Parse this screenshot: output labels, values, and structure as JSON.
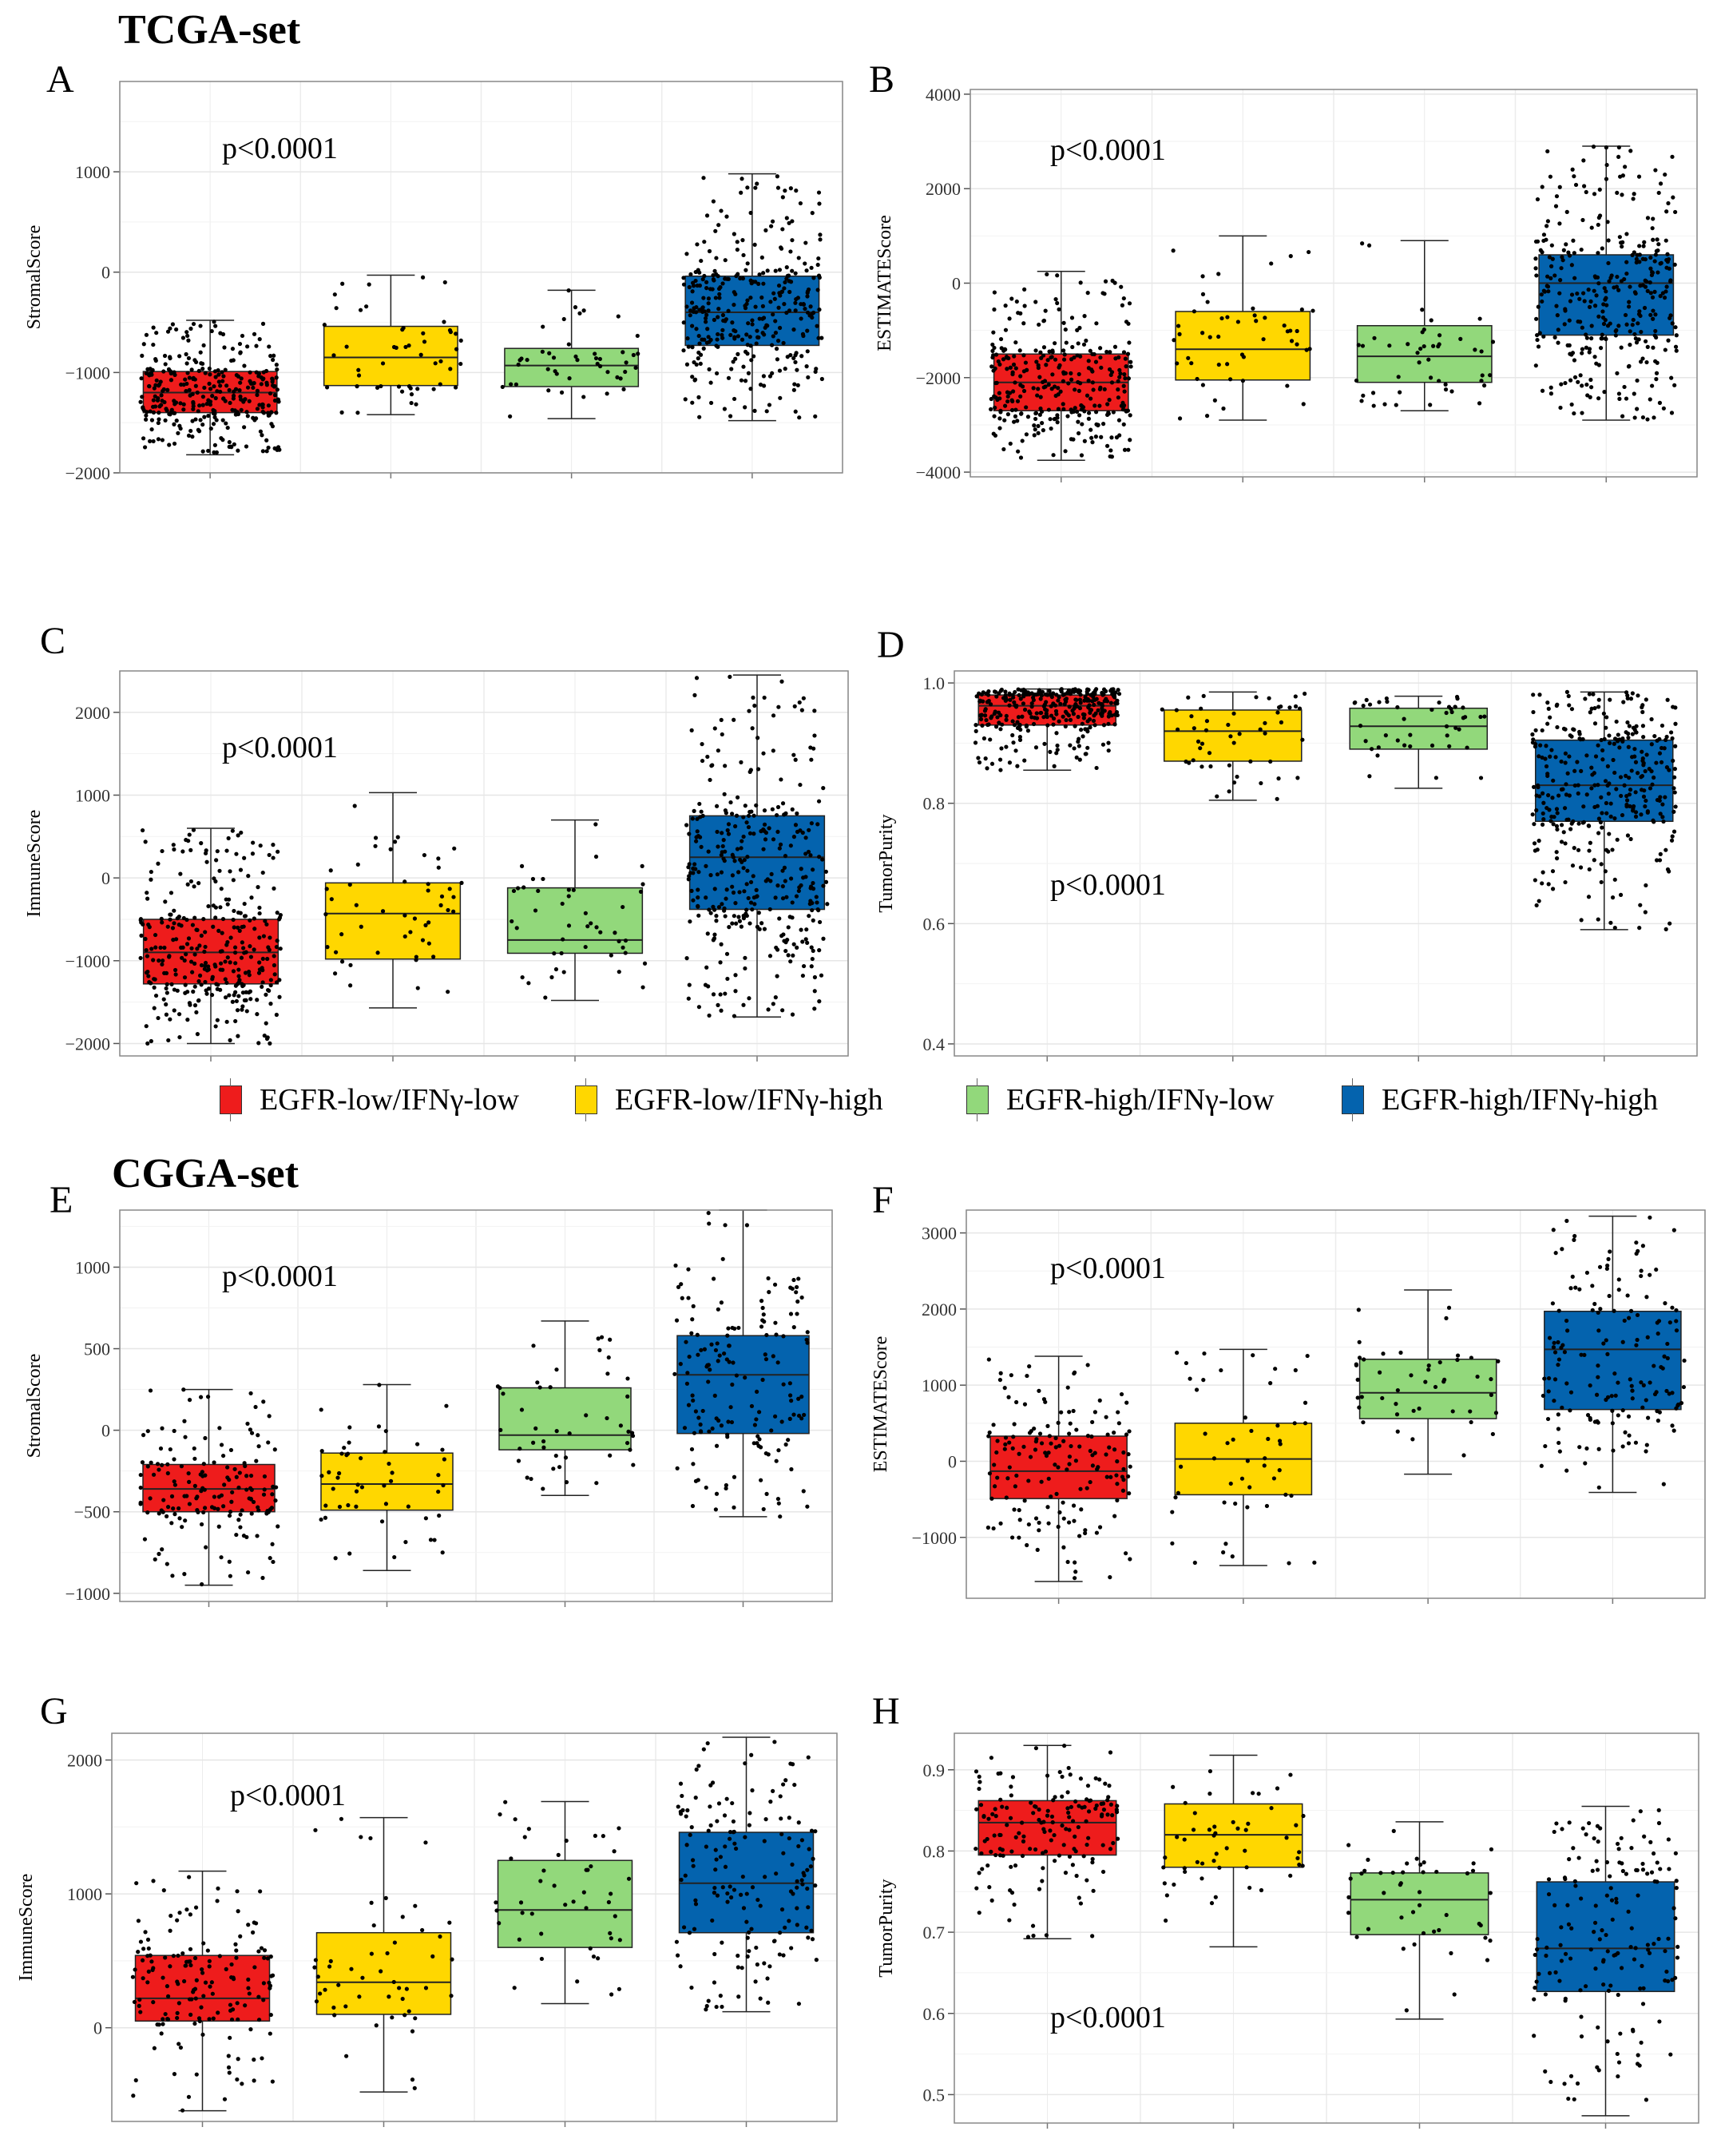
{
  "titles": {
    "tcga": "TCGA-set",
    "cgga": "CGGA-set"
  },
  "groups": [
    "EGFR-low/IFNγ-low",
    "EGFR-low/IFNγ-high",
    "EGFR-high/IFNγ-low",
    "EGFR-high/IFNγ-high"
  ],
  "colors": {
    "g1": "#ee1c1c",
    "g2": "#ffd700",
    "g3": "#92d87b",
    "g4": "#0463ae"
  },
  "chart_data": [
    {
      "id": "A",
      "type": "box",
      "ylabel": "StromalScore",
      "pvalue": "p<0.0001",
      "ylim": [
        -2000,
        1900
      ],
      "ticks": [
        -2000,
        -1000,
        0,
        1000
      ],
      "boxes": [
        {
          "group": "EGFR-low/IFNγ-low",
          "q1": -1400,
          "median": -1200,
          "q3": -990,
          "lo": -1820,
          "hi": -480,
          "n": 320
        },
        {
          "group": "EGFR-low/IFNγ-high",
          "q1": -1130,
          "median": -850,
          "q3": -540,
          "lo": -1420,
          "hi": -30,
          "n": 50
        },
        {
          "group": "EGFR-high/IFNγ-low",
          "q1": -1140,
          "median": -930,
          "q3": -760,
          "lo": -1460,
          "hi": -180,
          "n": 45
        },
        {
          "group": "EGFR-high/IFNγ-high",
          "q1": -730,
          "median": -400,
          "q3": -40,
          "lo": -1480,
          "hi": 980,
          "n": 330
        }
      ]
    },
    {
      "id": "B",
      "type": "box",
      "ylabel": "ESTIMATEScore",
      "pvalue": "p<0.0001",
      "ylim": [
        -4100,
        4100
      ],
      "ticks": [
        -4000,
        -2000,
        0,
        2000,
        4000
      ],
      "boxes": [
        {
          "group": "EGFR-low/IFNγ-low",
          "q1": -2700,
          "median": -2100,
          "q3": -1500,
          "lo": -3750,
          "hi": 250,
          "n": 320
        },
        {
          "group": "EGFR-low/IFNγ-high",
          "q1": -2050,
          "median": -1400,
          "q3": -600,
          "lo": -2900,
          "hi": 1000,
          "n": 50
        },
        {
          "group": "EGFR-high/IFNγ-low",
          "q1": -2100,
          "median": -1550,
          "q3": -900,
          "lo": -2700,
          "hi": 900,
          "n": 45
        },
        {
          "group": "EGFR-high/IFNγ-high",
          "q1": -1100,
          "median": 0,
          "q3": 600,
          "lo": -2900,
          "hi": 2900,
          "n": 330
        }
      ]
    },
    {
      "id": "C",
      "type": "box",
      "ylabel": "ImmuneScore",
      "pvalue": "p<0.0001",
      "ylim": [
        -2150,
        2500
      ],
      "ticks": [
        -2000,
        -1000,
        0,
        1000,
        2000
      ],
      "boxes": [
        {
          "group": "EGFR-low/IFNγ-low",
          "q1": -1280,
          "median": -900,
          "q3": -500,
          "lo": -2000,
          "hi": 600,
          "n": 320
        },
        {
          "group": "EGFR-low/IFNγ-high",
          "q1": -980,
          "median": -430,
          "q3": -60,
          "lo": -1570,
          "hi": 1030,
          "n": 50
        },
        {
          "group": "EGFR-high/IFNγ-low",
          "q1": -910,
          "median": -750,
          "q3": -120,
          "lo": -1480,
          "hi": 700,
          "n": 45
        },
        {
          "group": "EGFR-high/IFNγ-high",
          "q1": -380,
          "median": 250,
          "q3": 750,
          "lo": -1680,
          "hi": 2450,
          "n": 330
        }
      ]
    },
    {
      "id": "D",
      "type": "box",
      "ylabel": "TumorPurity",
      "pvalue": "p<0.0001",
      "ylim": [
        0.38,
        1.02
      ],
      "ticks": [
        0.4,
        0.6,
        0.8,
        1.0
      ],
      "boxes": [
        {
          "group": "EGFR-low/IFNγ-low",
          "q1": 0.93,
          "median": 0.962,
          "q3": 0.98,
          "lo": 0.855,
          "hi": 0.99,
          "n": 320
        },
        {
          "group": "EGFR-low/IFNγ-high",
          "q1": 0.87,
          "median": 0.92,
          "q3": 0.955,
          "lo": 0.805,
          "hi": 0.985,
          "n": 50
        },
        {
          "group": "EGFR-high/IFNγ-low",
          "q1": 0.89,
          "median": 0.928,
          "q3": 0.958,
          "lo": 0.825,
          "hi": 0.978,
          "n": 45
        },
        {
          "group": "EGFR-high/IFNγ-high",
          "q1": 0.77,
          "median": 0.83,
          "q3": 0.905,
          "lo": 0.59,
          "hi": 0.985,
          "n": 330
        }
      ]
    },
    {
      "id": "E",
      "type": "box",
      "ylabel": "StromalScore",
      "pvalue": "p<0.0001",
      "ylim": [
        -1050,
        1350
      ],
      "ticks": [
        -1000,
        -500,
        0,
        500,
        1000
      ],
      "boxes": [
        {
          "group": "EGFR-low/IFNγ-low",
          "q1": -500,
          "median": -360,
          "q3": -210,
          "lo": -950,
          "hi": 250,
          "n": 160
        },
        {
          "group": "EGFR-low/IFNγ-high",
          "q1": -490,
          "median": -330,
          "q3": -140,
          "lo": -860,
          "hi": 280,
          "n": 50
        },
        {
          "group": "EGFR-high/IFNγ-low",
          "q1": -120,
          "median": -30,
          "q3": 260,
          "lo": -400,
          "hi": 670,
          "n": 45
        },
        {
          "group": "EGFR-high/IFNγ-high",
          "q1": -20,
          "median": 340,
          "q3": 580,
          "lo": -530,
          "hi": 1350,
          "n": 160
        }
      ]
    },
    {
      "id": "F",
      "type": "box",
      "ylabel": "ESTIMATEScore",
      "pvalue": "p<0.0001",
      "ylim": [
        -1800,
        3300
      ],
      "ticks": [
        -1000,
        0,
        1000,
        2000,
        3000
      ],
      "boxes": [
        {
          "group": "EGFR-low/IFNγ-low",
          "q1": -490,
          "median": -130,
          "q3": 330,
          "lo": -1580,
          "hi": 1380,
          "n": 160
        },
        {
          "group": "EGFR-low/IFNγ-high",
          "q1": -440,
          "median": 30,
          "q3": 500,
          "lo": -1370,
          "hi": 1470,
          "n": 50
        },
        {
          "group": "EGFR-high/IFNγ-low",
          "q1": 560,
          "median": 900,
          "q3": 1340,
          "lo": -170,
          "hi": 2250,
          "n": 45
        },
        {
          "group": "EGFR-high/IFNγ-high",
          "q1": 680,
          "median": 1470,
          "q3": 1970,
          "lo": -410,
          "hi": 3220,
          "n": 160
        }
      ]
    },
    {
      "id": "G",
      "type": "box",
      "ylabel": "ImmuneScore",
      "pvalue": "p<0.0001",
      "ylim": [
        -700,
        2200
      ],
      "ticks": [
        0,
        1000,
        2000
      ],
      "boxes": [
        {
          "group": "EGFR-low/IFNγ-low",
          "q1": 50,
          "median": 220,
          "q3": 540,
          "lo": -620,
          "hi": 1170,
          "n": 160
        },
        {
          "group": "EGFR-low/IFNγ-high",
          "q1": 100,
          "median": 340,
          "q3": 710,
          "lo": -480,
          "hi": 1570,
          "n": 50
        },
        {
          "group": "EGFR-high/IFNγ-low",
          "q1": 600,
          "median": 880,
          "q3": 1250,
          "lo": 180,
          "hi": 1690,
          "n": 45
        },
        {
          "group": "EGFR-high/IFNγ-high",
          "q1": 710,
          "median": 1080,
          "q3": 1460,
          "lo": 120,
          "hi": 2170,
          "n": 160
        }
      ]
    },
    {
      "id": "H",
      "type": "box",
      "ylabel": "TumorPurity",
      "pvalue": "p<0.0001",
      "ylim": [
        0.465,
        0.945
      ],
      "ticks": [
        0.5,
        0.6,
        0.7,
        0.8,
        0.9
      ],
      "boxes": [
        {
          "group": "EGFR-low/IFNγ-low",
          "q1": 0.795,
          "median": 0.835,
          "q3": 0.862,
          "lo": 0.692,
          "hi": 0.93,
          "n": 160
        },
        {
          "group": "EGFR-low/IFNγ-high",
          "q1": 0.78,
          "median": 0.82,
          "q3": 0.858,
          "lo": 0.682,
          "hi": 0.918,
          "n": 50
        },
        {
          "group": "EGFR-high/IFNγ-low",
          "q1": 0.697,
          "median": 0.74,
          "q3": 0.773,
          "lo": 0.593,
          "hi": 0.836,
          "n": 45
        },
        {
          "group": "EGFR-high/IFNγ-high",
          "q1": 0.627,
          "median": 0.68,
          "q3": 0.762,
          "lo": 0.474,
          "hi": 0.855,
          "n": 160
        }
      ]
    }
  ]
}
